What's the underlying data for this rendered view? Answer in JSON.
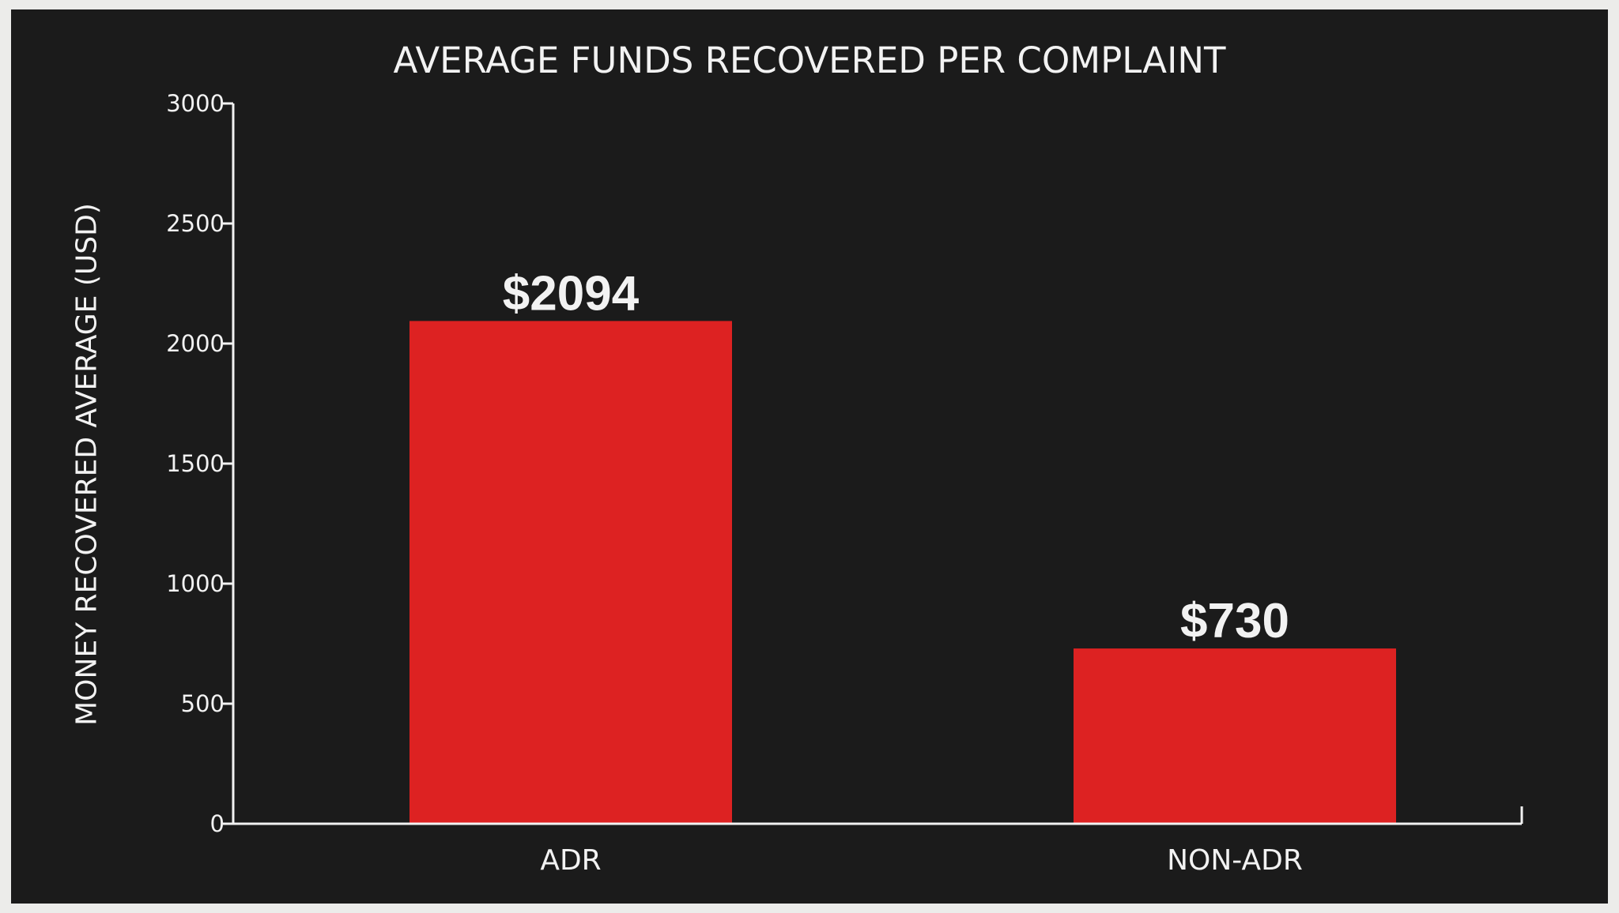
{
  "chart_data": {
    "type": "bar",
    "title": "AVERAGE FUNDS RECOVERED PER COMPLAINT",
    "xlabel": "",
    "ylabel": "MONEY RECOVERED AVERAGE (USD)",
    "categories": [
      "ADR",
      "NON-ADR"
    ],
    "values": [
      2094,
      730
    ],
    "data_labels": [
      "$2094",
      "$730"
    ],
    "ylim": [
      0,
      3000
    ],
    "yticks": [
      0,
      500,
      1000,
      1500,
      2000,
      2500,
      3000
    ],
    "grid": false,
    "legend": "none",
    "colors": {
      "background": "#1b1b1b",
      "bar": "#dd2222",
      "text": "#f2f2f2",
      "axis": "#f2f2f2"
    }
  }
}
